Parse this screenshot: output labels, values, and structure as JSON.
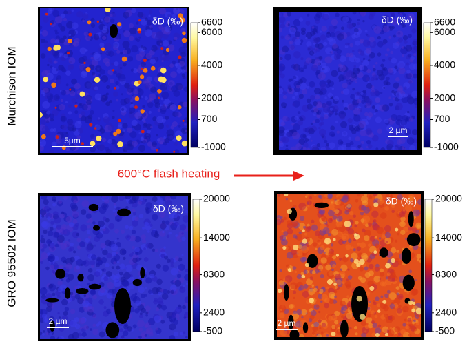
{
  "row_labels": [
    "Murchison IOM",
    "GRO 95502 IOM"
  ],
  "arrow_label": "600°C flash heating",
  "panels": [
    {
      "label": "δD (‰)",
      "scale_bar": "5µm",
      "color": "#2323cf",
      "colorbar": {
        "range": [
          -1000,
          6600
        ],
        "ticks": [
          6600,
          6000,
          4000,
          2000,
          700,
          -1000
        ]
      }
    },
    {
      "label": "δD (‰)",
      "scale_bar": "2 µm",
      "color": "#2b2bd4",
      "colorbar": {
        "range": [
          -1000,
          6600
        ],
        "ticks": [
          6600,
          6000,
          4000,
          2000,
          700,
          -1000
        ]
      }
    },
    {
      "label": "δD (‰)",
      "scale_bar": "2 µm",
      "color": "#3434cc",
      "colorbar": {
        "range": [
          -500,
          20000
        ],
        "ticks": [
          20000,
          14000,
          8300,
          2400,
          -500
        ]
      }
    },
    {
      "label": "δD (‰)",
      "scale_bar": "2 µm",
      "color": "#e4501c",
      "colorbar": {
        "range": [
          -500,
          20000
        ],
        "ticks": [
          20000,
          14000,
          8300,
          2400,
          -500
        ]
      }
    }
  ]
}
